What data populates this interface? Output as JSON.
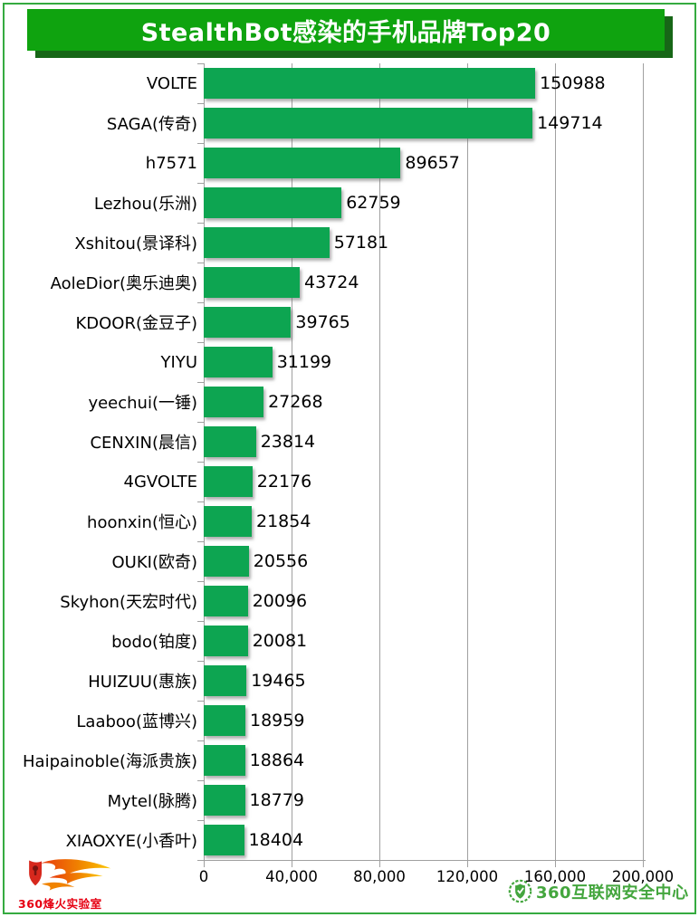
{
  "title": "StealthBot感染的手机品牌Top20",
  "chart_data": {
    "type": "bar",
    "orientation": "horizontal",
    "title": "StealthBot感染的手机品牌Top20",
    "categories": [
      "VOLTE",
      "SAGA(传奇)",
      "h7571",
      "Lezhou(乐洲)",
      "Xshitou(景译科)",
      "AoleDior(奥乐迪奥)",
      "KDOOR(金豆子)",
      "YIYU",
      "yeechui(一锤)",
      "CENXIN(晨信)",
      "4GVOLTE",
      "hoonxin(恒心)",
      "OUKI(欧奇)",
      "Skyhon(天宏时代)",
      "bodo(铂度)",
      "HUIZUU(惠族)",
      "Laaboo(蓝博兴)",
      "Haipainoble(海派贵族)",
      "Mytel(脉腾)",
      "XIAOXYE(小香叶)"
    ],
    "values": [
      150988,
      149714,
      89657,
      62759,
      57181,
      43724,
      39765,
      31199,
      27268,
      23814,
      22176,
      21854,
      20556,
      20096,
      20081,
      19465,
      18959,
      18864,
      18779,
      18404
    ],
    "value_labels": [
      "150988",
      "149714",
      "89657",
      "62759",
      "57181",
      "43724",
      "39765",
      "31199",
      "27268",
      "23814",
      "22176",
      "21854",
      "20556",
      "20096",
      "20081",
      "19465",
      "18959",
      "18864",
      "18779",
      "18404"
    ],
    "x_ticks": [
      "0",
      "40,000",
      "80,000",
      "120,000",
      "160,000",
      "200,000"
    ],
    "x_tick_values": [
      0,
      40000,
      80000,
      120000,
      160000,
      200000
    ],
    "xlim": [
      0,
      200000
    ],
    "xlabel": "",
    "ylabel": "",
    "grid": true,
    "legend": "none",
    "bar_color": "#0da551"
  },
  "footer": {
    "left_logo_text": "360烽火实验室",
    "right_logo_text": "360互联网安全中心"
  },
  "colors": {
    "banner": "#0fa30f",
    "banner_shadow": "#176617",
    "frame_border": "#35aa40",
    "bar": "#0da551",
    "gridline": "#a0a0a0",
    "footer_red": "#e60012",
    "footer_green": "#44a63e"
  }
}
